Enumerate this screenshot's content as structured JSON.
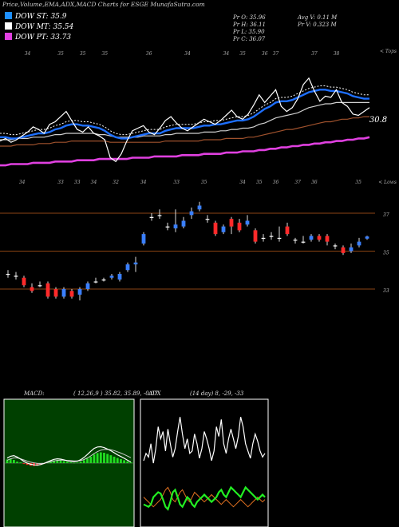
{
  "header": {
    "title": "Price,Volume,EMA,ADX,MACD Charts for ESGE MunafaSutra.com",
    "legend": [
      {
        "label": "DOW ST: 35.9",
        "color": "#1e90ff"
      },
      {
        "label": "DOW MT: 35.54",
        "color": "#ffffff"
      },
      {
        "label": "DOW PT: 33.73",
        "color": "#e040e0"
      }
    ],
    "ohlc": {
      "open": "Pr  O: 35.96",
      "high": "Pr  H: 36.11",
      "low": "Pr  L: 35.90",
      "close": "Pr  C: 36.07",
      "avg_volume": "Avg V: 0.11 M",
      "volume": "Pr  V: 0.323 M"
    }
  },
  "chart_data": [
    {
      "type": "line",
      "name": "price-ema",
      "right_labels": {
        "top": "< Tops",
        "bottom": "< Lows"
      },
      "price_annotation": "30.8",
      "top_ticks": [
        {
          "x": 5,
          "label": "34"
        },
        {
          "x": 11,
          "label": "35"
        },
        {
          "x": 15,
          "label": "35"
        },
        {
          "x": 19,
          "label": "35"
        },
        {
          "x": 27,
          "label": "36"
        },
        {
          "x": 34,
          "label": "34"
        },
        {
          "x": 41,
          "label": "34"
        },
        {
          "x": 44,
          "label": "35"
        },
        {
          "x": 48,
          "label": "36"
        },
        {
          "x": 50,
          "label": "37"
        },
        {
          "x": 57,
          "label": "37"
        },
        {
          "x": 61,
          "label": "38"
        }
      ],
      "bottom_ticks": [
        {
          "x": 4,
          "label": "34"
        },
        {
          "x": 11,
          "label": "33"
        },
        {
          "x": 14,
          "label": "33"
        },
        {
          "x": 17,
          "label": "34"
        },
        {
          "x": 21,
          "label": "32"
        },
        {
          "x": 26,
          "label": "34"
        },
        {
          "x": 32,
          "label": "33"
        },
        {
          "x": 37,
          "label": "35"
        },
        {
          "x": 44,
          "label": "34"
        },
        {
          "x": 47,
          "label": "35"
        },
        {
          "x": 50,
          "label": "36"
        },
        {
          "x": 54,
          "label": "37"
        },
        {
          "x": 57,
          "label": "36"
        },
        {
          "x": 65,
          "label": "35"
        }
      ],
      "price": [
        33.5,
        33.7,
        33.4,
        33.6,
        33.9,
        34.2,
        34.6,
        34.4,
        34.1,
        34.8,
        35.0,
        35.4,
        35.8,
        35.1,
        34.4,
        34.2,
        34.6,
        34.1,
        33.9,
        33.6,
        32.2,
        31.9,
        32.5,
        33.5,
        34.3,
        34.5,
        34.7,
        34.2,
        34.0,
        34.5,
        35.1,
        35.4,
        34.9,
        34.5,
        34.3,
        34.6,
        34.9,
        35.2,
        35.0,
        34.8,
        35.1,
        35.5,
        35.9,
        35.4,
        35.2,
        35.6,
        36.3,
        37.1,
        36.5,
        37.0,
        37.5,
        36.2,
        35.8,
        36.1,
        36.8,
        37.9,
        38.4,
        37.4,
        36.6,
        37.0,
        36.9,
        37.5,
        36.5,
        36.2,
        35.6,
        35.5,
        35.8,
        36.1
      ],
      "ema_short": [
        33.8,
        33.8,
        33.7,
        33.7,
        33.8,
        33.9,
        34.0,
        34.1,
        34.1,
        34.2,
        34.4,
        34.5,
        34.7,
        34.8,
        34.8,
        34.7,
        34.7,
        34.6,
        34.5,
        34.3,
        34.0,
        33.8,
        33.7,
        33.7,
        33.8,
        33.9,
        34.0,
        34.1,
        34.1,
        34.1,
        34.3,
        34.4,
        34.5,
        34.5,
        34.5,
        34.5,
        34.6,
        34.7,
        34.7,
        34.8,
        34.8,
        34.9,
        35.0,
        35.1,
        35.1,
        35.2,
        35.4,
        35.7,
        36.0,
        36.2,
        36.5,
        36.6,
        36.6,
        36.7,
        36.9,
        37.1,
        37.3,
        37.4,
        37.5,
        37.5,
        37.4,
        37.4,
        37.3,
        37.2,
        37.0,
        36.9,
        36.8,
        36.8
      ],
      "ema_mid": [
        33.6,
        33.6,
        33.6,
        33.7,
        33.7,
        33.7,
        33.8,
        33.8,
        33.8,
        33.9,
        34.0,
        34.0,
        34.1,
        34.1,
        34.1,
        34.1,
        34.1,
        34.1,
        34.0,
        34.0,
        33.9,
        33.8,
        33.8,
        33.8,
        33.8,
        33.8,
        33.9,
        33.9,
        33.9,
        33.9,
        34.0,
        34.0,
        34.1,
        34.1,
        34.1,
        34.1,
        34.1,
        34.2,
        34.2,
        34.2,
        34.3,
        34.3,
        34.4,
        34.4,
        34.5,
        34.5,
        34.6,
        34.8,
        34.9,
        35.1,
        35.3,
        35.4,
        35.5,
        35.6,
        35.7,
        35.9,
        36.1,
        36.2,
        36.3,
        36.4,
        36.4,
        36.5,
        36.5,
        36.5,
        36.5,
        36.5,
        36.5,
        36.5
      ],
      "ema_long": [
        33.1,
        33.1,
        33.1,
        33.2,
        33.2,
        33.2,
        33.2,
        33.3,
        33.3,
        33.3,
        33.4,
        33.4,
        33.4,
        33.5,
        33.5,
        33.5,
        33.5,
        33.5,
        33.5,
        33.5,
        33.4,
        33.4,
        33.4,
        33.4,
        33.4,
        33.4,
        33.4,
        33.4,
        33.4,
        33.4,
        33.5,
        33.5,
        33.5,
        33.5,
        33.5,
        33.5,
        33.5,
        33.6,
        33.6,
        33.6,
        33.6,
        33.7,
        33.7,
        33.7,
        33.7,
        33.8,
        33.8,
        33.9,
        34.0,
        34.1,
        34.2,
        34.3,
        34.4,
        34.4,
        34.5,
        34.6,
        34.7,
        34.8,
        34.9,
        35.0,
        35.0,
        35.1,
        35.2,
        35.2,
        35.3,
        35.3,
        35.4,
        35.4
      ],
      "ema_pt": [
        31.6,
        31.6,
        31.7,
        31.7,
        31.7,
        31.7,
        31.8,
        31.8,
        31.8,
        31.8,
        31.9,
        31.9,
        31.9,
        31.9,
        32.0,
        32.0,
        32.0,
        32.0,
        32.1,
        32.1,
        32.1,
        32.1,
        32.1,
        32.1,
        32.2,
        32.2,
        32.2,
        32.2,
        32.3,
        32.3,
        32.3,
        32.3,
        32.3,
        32.4,
        32.4,
        32.4,
        32.4,
        32.5,
        32.5,
        32.5,
        32.5,
        32.6,
        32.6,
        32.6,
        32.7,
        32.7,
        32.7,
        32.8,
        32.8,
        32.9,
        32.9,
        33.0,
        33.0,
        33.1,
        33.1,
        33.2,
        33.2,
        33.3,
        33.3,
        33.4,
        33.4,
        33.5,
        33.5,
        33.6,
        33.6,
        33.7,
        33.7,
        33.8
      ]
    },
    {
      "type": "candlestick",
      "name": "daily-candles",
      "level_lines": [
        {
          "value": "37"
        },
        {
          "value": "35"
        },
        {
          "value": "33"
        }
      ],
      "candles": [
        {
          "o": 34.1,
          "c": 34.1,
          "h": 34.3,
          "l": 33.9
        },
        {
          "o": 34.0,
          "c": 34.0,
          "h": 34.2,
          "l": 33.8
        },
        {
          "o": 33.9,
          "c": 33.5,
          "h": 34.0,
          "l": 33.4
        },
        {
          "o": 33.4,
          "c": 33.2,
          "h": 33.6,
          "l": 33.1
        },
        {
          "o": 33.5,
          "c": 33.5,
          "h": 33.7,
          "l": 33.4
        },
        {
          "o": 33.6,
          "c": 32.9,
          "h": 33.7,
          "l": 32.8
        },
        {
          "o": 33.3,
          "c": 32.9,
          "h": 33.4,
          "l": 32.8
        },
        {
          "o": 32.9,
          "c": 33.3,
          "h": 33.4,
          "l": 32.8
        },
        {
          "o": 33.2,
          "c": 32.9,
          "h": 33.3,
          "l": 32.8
        },
        {
          "o": 33.0,
          "c": 33.3,
          "h": 33.4,
          "l": 32.7
        },
        {
          "o": 33.3,
          "c": 33.6,
          "h": 33.7,
          "l": 33.2
        },
        {
          "o": 33.7,
          "c": 33.7,
          "h": 33.9,
          "l": 33.6
        },
        {
          "o": 33.8,
          "c": 33.8,
          "h": 33.9,
          "l": 33.7
        },
        {
          "o": 33.9,
          "c": 34.0,
          "h": 34.1,
          "l": 33.8
        },
        {
          "o": 33.8,
          "c": 34.1,
          "h": 34.2,
          "l": 33.7
        },
        {
          "o": 34.3,
          "c": 34.6,
          "h": 34.7,
          "l": 34.2
        },
        {
          "o": 34.6,
          "c": 34.7,
          "h": 35.0,
          "l": 34.2
        },
        {
          "o": 35.7,
          "c": 36.2,
          "h": 36.3,
          "l": 35.6
        },
        {
          "o": 37.1,
          "c": 37.1,
          "h": 37.3,
          "l": 36.9
        },
        {
          "o": 37.2,
          "c": 37.2,
          "h": 37.5,
          "l": 37.0
        },
        {
          "o": 36.6,
          "c": 36.6,
          "h": 36.8,
          "l": 36.4
        },
        {
          "o": 36.5,
          "c": 36.7,
          "h": 37.5,
          "l": 36.3
        },
        {
          "o": 36.6,
          "c": 36.9,
          "h": 37.1,
          "l": 36.5
        },
        {
          "o": 37.2,
          "c": 37.4,
          "h": 37.6,
          "l": 37.0
        },
        {
          "o": 37.5,
          "c": 37.7,
          "h": 37.9,
          "l": 37.4
        },
        {
          "o": 37.0,
          "c": 37.0,
          "h": 37.2,
          "l": 36.8
        },
        {
          "o": 36.8,
          "c": 36.2,
          "h": 36.9,
          "l": 36.1
        },
        {
          "o": 36.3,
          "c": 36.6,
          "h": 36.7,
          "l": 36.2
        },
        {
          "o": 37.0,
          "c": 36.6,
          "h": 37.1,
          "l": 36.2
        },
        {
          "o": 36.8,
          "c": 36.4,
          "h": 37.0,
          "l": 36.3
        },
        {
          "o": 36.7,
          "c": 36.9,
          "h": 37.2,
          "l": 36.6
        },
        {
          "o": 36.4,
          "c": 35.8,
          "h": 36.5,
          "l": 35.7
        },
        {
          "o": 36.0,
          "c": 36.0,
          "h": 36.2,
          "l": 35.8
        },
        {
          "o": 36.1,
          "c": 36.1,
          "h": 36.3,
          "l": 35.9
        },
        {
          "o": 36.0,
          "c": 36.0,
          "h": 36.6,
          "l": 35.8
        },
        {
          "o": 36.6,
          "c": 36.2,
          "h": 36.8,
          "l": 36.1
        },
        {
          "o": 35.9,
          "c": 35.9,
          "h": 36.0,
          "l": 35.7
        },
        {
          "o": 35.8,
          "c": 35.8,
          "h": 36.1,
          "l": 35.7
        },
        {
          "o": 35.9,
          "c": 36.1,
          "h": 36.2,
          "l": 35.8
        },
        {
          "o": 36.1,
          "c": 35.9,
          "h": 36.2,
          "l": 35.8
        },
        {
          "o": 36.1,
          "c": 35.8,
          "h": 36.2,
          "l": 35.6
        },
        {
          "o": 35.6,
          "c": 35.6,
          "h": 35.7,
          "l": 35.4
        },
        {
          "o": 35.5,
          "c": 35.2,
          "h": 35.6,
          "l": 35.1
        },
        {
          "o": 35.3,
          "c": 35.5,
          "h": 35.7,
          "l": 35.2
        },
        {
          "o": 35.6,
          "c": 35.8,
          "h": 36.0,
          "l": 35.5
        },
        {
          "o": 35.96,
          "c": 36.07,
          "h": 36.11,
          "l": 35.9
        }
      ]
    },
    {
      "type": "bar",
      "name": "macd",
      "label": "MACD:",
      "values_text": "( 12,26,9 ) 35.82,  35.89,  -0.07",
      "histogram": [
        0.25,
        0.3,
        0.22,
        0.1,
        0.05,
        -0.05,
        -0.12,
        -0.18,
        -0.2,
        -0.18,
        -0.12,
        -0.05,
        0.05,
        0.12,
        0.18,
        0.22,
        0.2,
        0.14,
        0.1,
        0.05,
        0.02,
        0.04,
        0.1,
        0.2,
        0.32,
        0.45,
        0.6,
        0.7,
        0.75,
        0.72,
        0.64,
        0.55,
        0.45,
        0.36,
        0.28,
        0.2,
        0.12,
        0.05
      ],
      "macd_line": [
        0.35,
        0.48,
        0.52,
        0.42,
        0.28,
        0.12,
        0.0,
        -0.08,
        -0.12,
        -0.14,
        -0.1,
        -0.02,
        0.08,
        0.18,
        0.26,
        0.3,
        0.28,
        0.22,
        0.16,
        0.12,
        0.1,
        0.14,
        0.24,
        0.4,
        0.6,
        0.82,
        1.02,
        1.12,
        1.14,
        1.08,
        0.98,
        0.86,
        0.72,
        0.58,
        0.46,
        0.34,
        0.2,
        0.08
      ],
      "signal_line": [
        0.2,
        0.3,
        0.36,
        0.36,
        0.3,
        0.22,
        0.14,
        0.07,
        0.02,
        -0.02,
        -0.03,
        -0.01,
        0.04,
        0.1,
        0.15,
        0.19,
        0.21,
        0.21,
        0.19,
        0.17,
        0.15,
        0.15,
        0.18,
        0.25,
        0.36,
        0.5,
        0.66,
        0.8,
        0.9,
        0.95,
        0.96,
        0.93,
        0.87,
        0.79,
        0.7,
        0.6,
        0.49,
        0.38
      ]
    },
    {
      "type": "line",
      "name": "adx",
      "label": "ADX",
      "values_text": "(14 day) 8, -29, -33",
      "adx": [
        52,
        58,
        55,
        66,
        50,
        62,
        80,
        70,
        76,
        60,
        78,
        66,
        55,
        62,
        76,
        88,
        74,
        62,
        70,
        58,
        60,
        74,
        66,
        54,
        62,
        76,
        70,
        62,
        52,
        60,
        80,
        72,
        86,
        66,
        58,
        70,
        78,
        70,
        62,
        72,
        88,
        80,
        66,
        60,
        54,
        66,
        74,
        68,
        60,
        55,
        58
      ],
      "plus_di": [
        16,
        15,
        14,
        16,
        22,
        24,
        26,
        25,
        20,
        14,
        12,
        18,
        26,
        28,
        22,
        16,
        14,
        18,
        22,
        20,
        16,
        14,
        18,
        20,
        22,
        24,
        22,
        20,
        18,
        20,
        22,
        26,
        28,
        24,
        22,
        26,
        30,
        28,
        26,
        24,
        22,
        26,
        30,
        28,
        26,
        24,
        22,
        20,
        22,
        24,
        22
      ],
      "minus_di": [
        22,
        20,
        18,
        16,
        14,
        16,
        18,
        20,
        24,
        28,
        30,
        26,
        20,
        18,
        22,
        26,
        28,
        24,
        20,
        18,
        22,
        26,
        24,
        22,
        20,
        18,
        20,
        22,
        24,
        22,
        20,
        18,
        16,
        18,
        20,
        18,
        16,
        14,
        16,
        18,
        20,
        18,
        16,
        14,
        16,
        18,
        20,
        22,
        20,
        18,
        20
      ]
    }
  ]
}
